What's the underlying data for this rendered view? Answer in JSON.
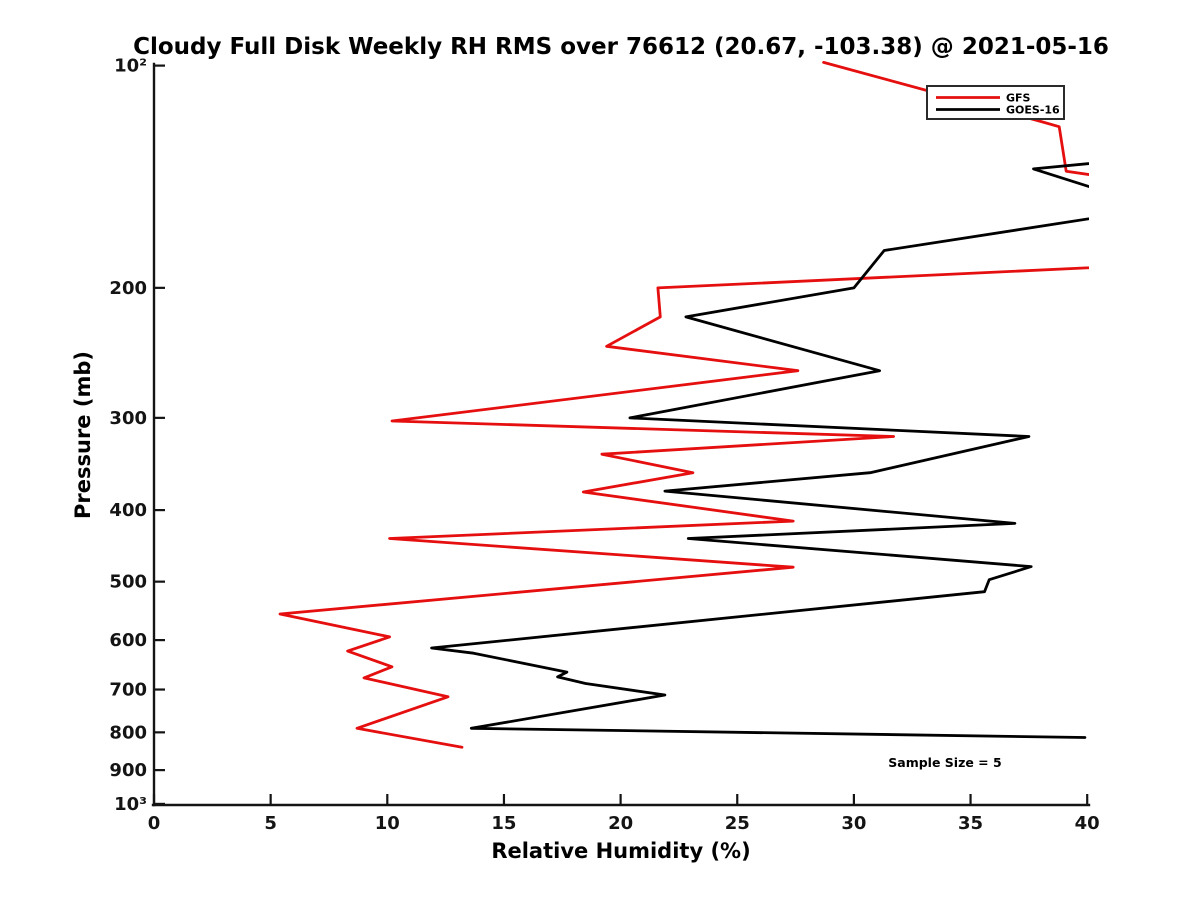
{
  "figure": {
    "title": "Cloudy Full Disk Weekly RH RMS over 76612 (20.67, -103.38) @ 2021-05-16",
    "xlabel": "Relative Humidity (%)",
    "ylabel": "Pressure (mb)",
    "annotation": "Sample Size = 5"
  },
  "chart_data": {
    "type": "line",
    "title": "Cloudy Full Disk Weekly RH RMS over 76612 (20.67, -103.38) @ 2021-05-16",
    "station": "76612",
    "coordinates": "(20.67, -103.38)",
    "date": "2021-05-16",
    "xlabel": "Relative Humidity (%)",
    "ylabel": "Pressure (mb)",
    "x_axis": {
      "min": 0,
      "max": 40,
      "ticks": [
        0,
        5,
        10,
        15,
        20,
        25,
        30,
        35,
        40
      ]
    },
    "y_axis": {
      "scale": "log",
      "inverted": true,
      "min": 100,
      "max": 1000,
      "ticks": [
        {
          "v": 100,
          "label": "10²"
        },
        {
          "v": 200,
          "label": "200"
        },
        {
          "v": 300,
          "label": "300"
        },
        {
          "v": 400,
          "label": "400"
        },
        {
          "v": 500,
          "label": "500"
        },
        {
          "v": 600,
          "label": "600"
        },
        {
          "v": 700,
          "label": "700"
        },
        {
          "v": 800,
          "label": "800"
        },
        {
          "v": 900,
          "label": "900"
        },
        {
          "v": 1000,
          "label": "10³"
        }
      ]
    },
    "grid": false,
    "legend": {
      "position": "upper right",
      "entries": [
        {
          "label": "GFS",
          "color": "#e60f0f"
        },
        {
          "label": "GOES-16",
          "color": "#000000"
        }
      ]
    },
    "annotation": {
      "text": "Sample Size = 5",
      "rh": 33.9,
      "pressure": 885
    },
    "series": [
      {
        "name": "GFS",
        "color": "#e60f0f",
        "units": {
          "x": "percent RH",
          "y": "mb"
        },
        "points": [
          [
            28.7,
            99
          ],
          [
            38.0,
            119
          ],
          [
            38.8,
            121
          ],
          [
            39.1,
            139
          ],
          [
            43.0,
            145
          ],
          [
            43.0,
            186
          ],
          [
            21.6,
            200
          ],
          [
            21.7,
            219
          ],
          [
            19.4,
            240
          ],
          [
            27.6,
            259
          ],
          [
            10.2,
            303
          ],
          [
            31.7,
            318
          ],
          [
            19.2,
            336
          ],
          [
            23.1,
            356
          ],
          [
            18.4,
            378
          ],
          [
            27.4,
            414
          ],
          [
            10.1,
            437
          ],
          [
            27.4,
            478
          ],
          [
            5.4,
            553
          ],
          [
            10.1,
            594
          ],
          [
            8.3,
            621
          ],
          [
            10.2,
            652
          ],
          [
            9.0,
            675
          ],
          [
            12.6,
            716
          ],
          [
            8.7,
            790
          ],
          [
            13.2,
            838
          ]
        ]
      },
      {
        "name": "GOES-16",
        "color": "#000000",
        "units": {
          "x": "percent RH",
          "y": "mb"
        },
        "points": [
          [
            43.0,
            133
          ],
          [
            37.7,
            138
          ],
          [
            43.0,
            156
          ],
          [
            31.3,
            178
          ],
          [
            30.0,
            200
          ],
          [
            22.8,
            219
          ],
          [
            31.1,
            259
          ],
          [
            20.4,
            300
          ],
          [
            37.5,
            318
          ],
          [
            30.7,
            356
          ],
          [
            21.9,
            377
          ],
          [
            36.9,
            417
          ],
          [
            22.9,
            437
          ],
          [
            37.6,
            477
          ],
          [
            35.8,
            497
          ],
          [
            35.6,
            516
          ],
          [
            11.9,
            615
          ],
          [
            13.7,
            625
          ],
          [
            17.7,
            663
          ],
          [
            17.3,
            673
          ],
          [
            18.5,
            687
          ],
          [
            21.9,
            712
          ],
          [
            13.6,
            790
          ],
          [
            39.9,
            813
          ]
        ]
      }
    ]
  }
}
